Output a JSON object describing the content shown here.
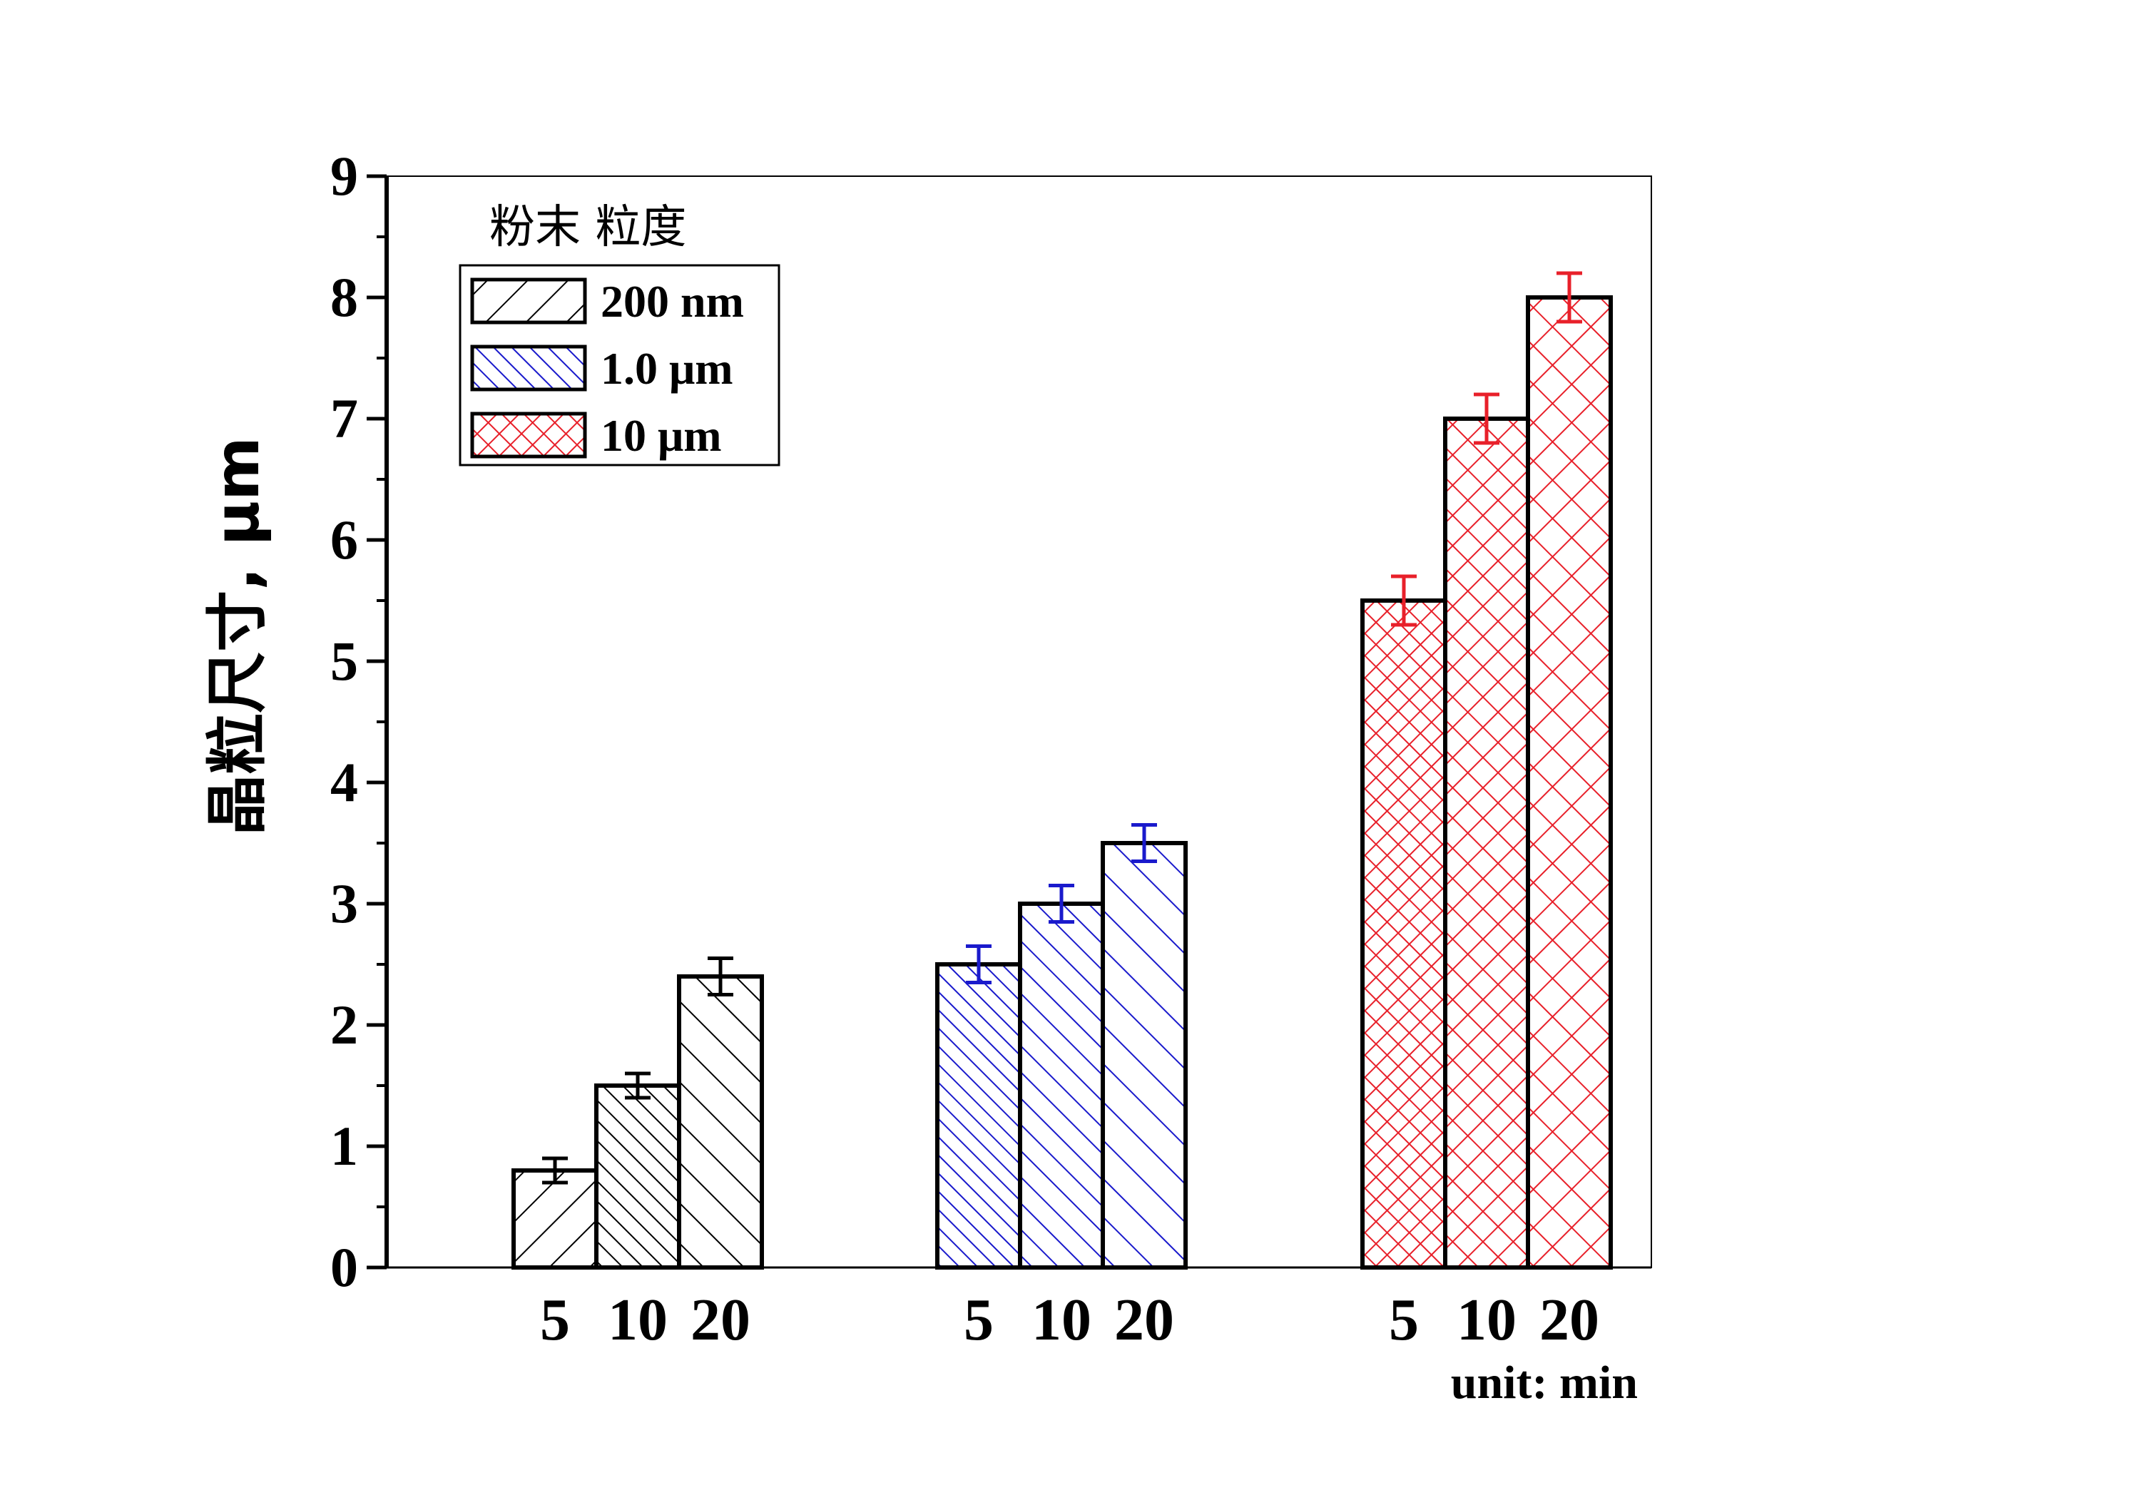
{
  "chart_data": {
    "type": "bar",
    "title": "",
    "ylabel": "晶粒尺寸,  μm",
    "xlabel": "",
    "x_unit_note": "unit: min",
    "ylim": [
      0,
      9
    ],
    "yticks": [
      "0",
      "1",
      "2",
      "3",
      "4",
      "5",
      "6",
      "7",
      "8",
      "9"
    ],
    "legend": {
      "title": "粉末 粒度",
      "placement": "top-left"
    },
    "groups": [
      {
        "name": "200 nm",
        "color": "#000000",
        "categories": [
          "5",
          "10",
          "20"
        ],
        "values": [
          0.8,
          1.5,
          2.4
        ],
        "errors": [
          0.1,
          0.1,
          0.15
        ],
        "hatches": [
          "fwd-wide",
          "back-tight",
          "back-wide"
        ],
        "legend_hatch": "fwd-wide"
      },
      {
        "name": "1.0 μm",
        "color": "#1a1acc",
        "categories": [
          "5",
          "10",
          "20"
        ],
        "values": [
          2.5,
          3.0,
          3.5
        ],
        "errors": [
          0.15,
          0.15,
          0.15
        ],
        "hatches": [
          "back-tight",
          "back-mid",
          "back-wide"
        ],
        "legend_hatch": "back-tight"
      },
      {
        "name": "10 μm",
        "color": "#e8202a",
        "categories": [
          "5",
          "10",
          "20"
        ],
        "values": [
          5.5,
          7.0,
          8.0
        ],
        "errors": [
          0.2,
          0.2,
          0.2
        ],
        "hatches": [
          "cross-tight",
          "cross-mid",
          "cross-wide"
        ],
        "legend_hatch": "cross-tight"
      }
    ]
  }
}
